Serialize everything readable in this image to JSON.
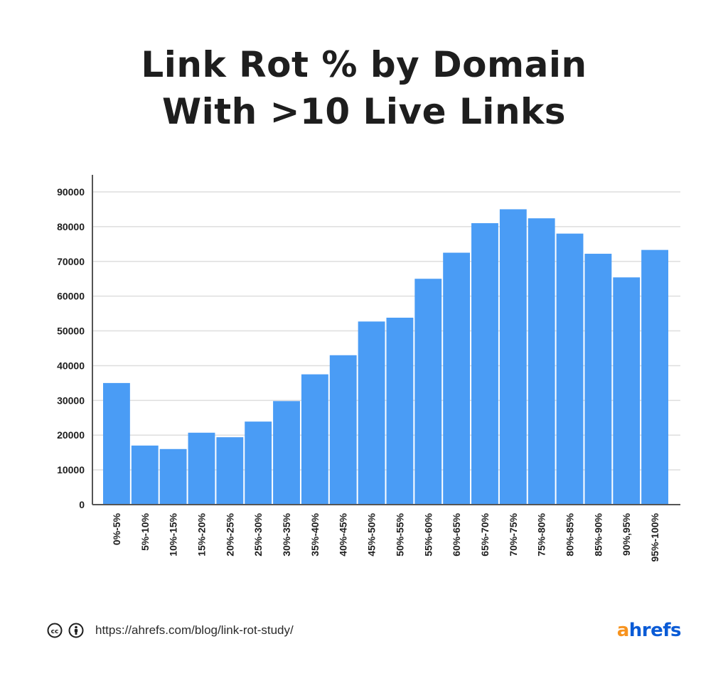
{
  "chart_data": {
    "type": "bar",
    "title_lines": [
      "Link Rot % by Domain",
      "With >10 Live Links"
    ],
    "categories": [
      "0%-5%",
      "5%-10%",
      "10%-15%",
      "15%-20%",
      "20%-25%",
      "25%-30%",
      "30%-35%",
      "35%-40%",
      "40%-45%",
      "45%-50%",
      "50%-55%",
      "55%-60%",
      "60%-65%",
      "65%-70%",
      "70%-75%",
      "75%-80%",
      "80%-85%",
      "85%-90%",
      "90%,95%",
      "95%-100%"
    ],
    "values": [
      35000,
      17000,
      16000,
      20700,
      19400,
      23900,
      29800,
      37500,
      43000,
      52700,
      53800,
      65000,
      72500,
      81000,
      85000,
      82400,
      78000,
      72200,
      65400,
      73300
    ],
    "ylim": [
      0,
      90000
    ],
    "yticks": [
      0,
      10000,
      20000,
      30000,
      40000,
      50000,
      60000,
      70000,
      80000,
      90000
    ],
    "grid": true,
    "bar_color": "#4a9cf5"
  },
  "footer": {
    "url": "https://ahrefs.com/blog/link-rot-study/",
    "logo": "ahrefs",
    "icons": [
      "creative-commons-icon",
      "attribution-icon"
    ]
  }
}
